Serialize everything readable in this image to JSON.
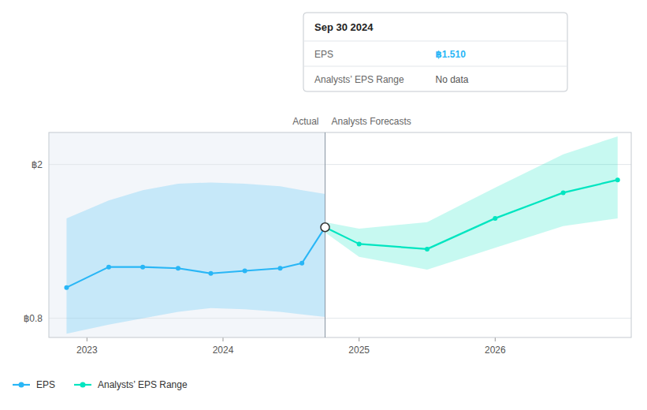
{
  "chart_data": {
    "type": "line",
    "xlim": [
      2022.72,
      2027.0
    ],
    "xticks": [
      2023,
      2024,
      2025,
      2026
    ],
    "ylim": [
      0.65,
      2.25
    ],
    "yticks": [
      {
        "value": 0.8,
        "label": "฿0.8"
      },
      {
        "value": 2.0,
        "label": "฿2"
      }
    ],
    "grid": true,
    "series": [
      {
        "name": "EPS",
        "color": "#29b6f6",
        "marker": "circle",
        "x": [
          2022.85,
          2023.16,
          2023.41,
          2023.67,
          2023.91,
          2024.16,
          2024.42,
          2024.58,
          2024.75
        ],
        "values": [
          1.04,
          1.2,
          1.2,
          1.19,
          1.15,
          1.17,
          1.19,
          1.23,
          1.51
        ],
        "upper": [
          1.58,
          1.72,
          1.8,
          1.85,
          1.86,
          1.85,
          1.83,
          1.8,
          1.77
        ],
        "lower": [
          0.68,
          0.75,
          0.8,
          0.85,
          0.88,
          0.87,
          0.85,
          0.83,
          0.81
        ]
      },
      {
        "name": "Analysts’ EPS Range",
        "color": "#00e5c0",
        "marker": "circle",
        "x": [
          2024.75,
          2025.0,
          2025.5,
          2026.0,
          2026.5,
          2026.9
        ],
        "values": [
          1.51,
          1.38,
          1.34,
          1.58,
          1.78,
          1.88
        ],
        "upper": [
          1.55,
          1.5,
          1.55,
          1.82,
          2.08,
          2.22
        ],
        "lower": [
          1.47,
          1.28,
          1.18,
          1.35,
          1.52,
          1.58
        ]
      }
    ],
    "divider": {
      "x": 2024.75,
      "left_label": "Actual",
      "right_label": "Analysts Forecasts"
    },
    "tooltip": {
      "title": "Sep 30 2024",
      "rows": [
        {
          "label": "EPS",
          "value": "฿1.510"
        },
        {
          "label": "Analysts’ EPS Range",
          "value": "No data"
        }
      ]
    }
  }
}
